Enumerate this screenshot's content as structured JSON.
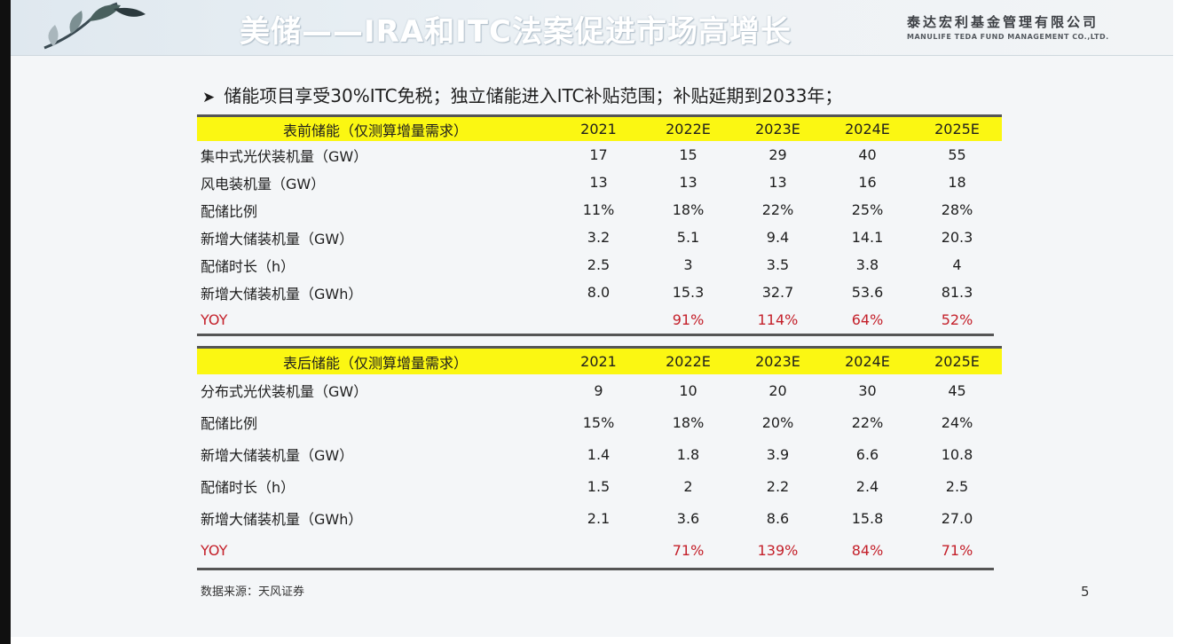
{
  "header": {
    "title": "美储——IRA和ITC法案促进市场高增长",
    "company_cn": "泰达宏利基金管理有限公司",
    "company_en": "MANULIFE TEDA FUND MANAGEMENT CO.,LTD."
  },
  "bullet": "储能项目享受30%ITC免税；独立储能进入ITC补贴范围；补贴延期到2033年；",
  "table1": {
    "header": [
      "表前储能（仅测算增量需求）",
      "2021",
      "2022E",
      "2023E",
      "2024E",
      "2025E"
    ],
    "rows": [
      [
        "集中式光伏装机量（GW）",
        "17",
        "15",
        "29",
        "40",
        "55"
      ],
      [
        "风电装机量（GW）",
        "13",
        "13",
        "13",
        "16",
        "18"
      ],
      [
        "配储比例",
        "11%",
        "18%",
        "22%",
        "25%",
        "28%"
      ],
      [
        "新增大储装机量（GW）",
        "3.2",
        "5.1",
        "9.4",
        "14.1",
        "20.3"
      ],
      [
        "配储时长（h）",
        "2.5",
        "3",
        "3.5",
        "3.8",
        "4"
      ],
      [
        "新增大储装机量（GWh）",
        "8.0",
        "15.3",
        "32.7",
        "53.6",
        "81.3"
      ]
    ],
    "yoy": [
      "YOY",
      "",
      "91%",
      "114%",
      "64%",
      "52%"
    ]
  },
  "table2": {
    "header": [
      "表后储能（仅测算增量需求）",
      "2021",
      "2022E",
      "2023E",
      "2024E",
      "2025E"
    ],
    "rows": [
      [
        "分布式光伏装机量（GW）",
        "9",
        "10",
        "20",
        "30",
        "45"
      ],
      [
        "配储比例",
        "15%",
        "18%",
        "20%",
        "22%",
        "24%"
      ],
      [
        "新增大储装机量（GW）",
        "1.4",
        "1.8",
        "3.9",
        "6.6",
        "10.8"
      ],
      [
        "配储时长（h）",
        "1.5",
        "2",
        "2.2",
        "2.4",
        "2.5"
      ],
      [
        "新增大储装机量（GWh）",
        "2.1",
        "3.6",
        "8.6",
        "15.8",
        "27.0"
      ]
    ],
    "yoy": [
      "YOY",
      "",
      "71%",
      "139%",
      "84%",
      "71%"
    ]
  },
  "source": "数据来源：天风证券",
  "page_number": "5",
  "colors": {
    "header_fill": "#fbf712",
    "yoy_text": "#c4202a"
  }
}
